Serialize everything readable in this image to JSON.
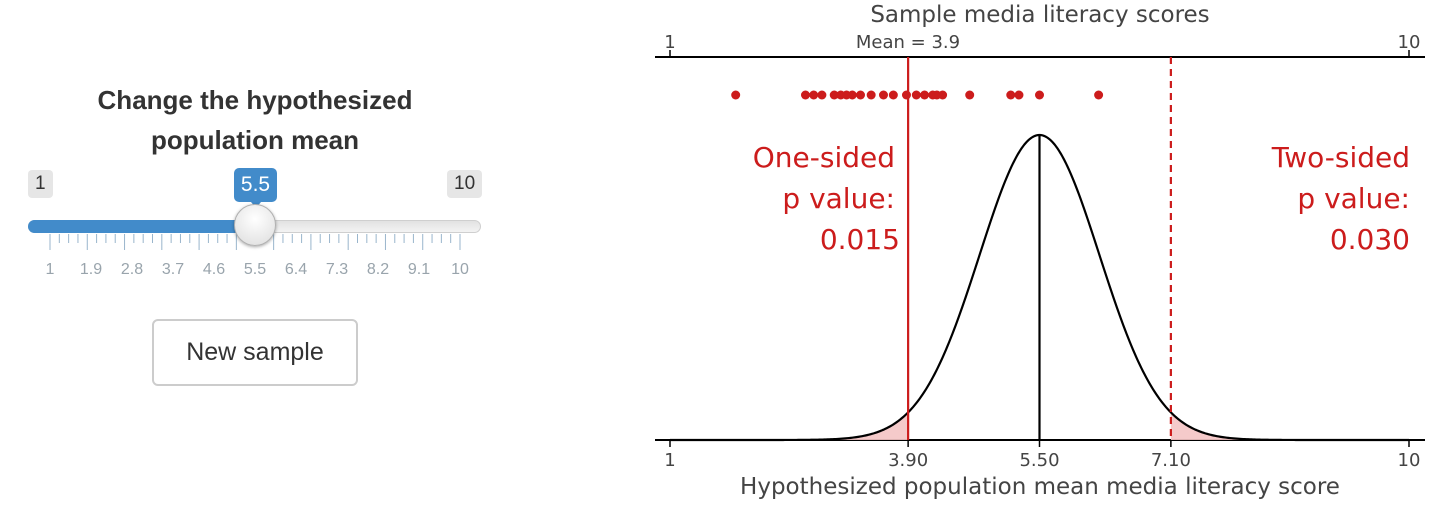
{
  "panel": {
    "title_line1": "Change the hypothesized",
    "title_line2": "population mean",
    "slider": {
      "min_label": "1",
      "max_label": "10",
      "value_label": "5.5",
      "min": 1,
      "max": 10,
      "value": 5.5,
      "tick_labels": [
        "1",
        "1.9",
        "2.8",
        "3.7",
        "4.6",
        "5.5",
        "6.4",
        "7.3",
        "8.2",
        "9.1",
        "10"
      ],
      "fill_color": "#428bca"
    },
    "new_sample_label": "New sample"
  },
  "chart_data": {
    "type": "scatter",
    "title": "Sample media literacy scores",
    "top_axis": {
      "min_label": "1",
      "max_label": "10",
      "mean_label": "Mean = 3.9"
    },
    "xlabel": "Hypothesized population mean media literacy score",
    "xlim": [
      1,
      10
    ],
    "x_tick_labels": [
      "1",
      "3.90",
      "5.50",
      "7.10",
      "10"
    ],
    "x_ticks": [
      1,
      3.9,
      5.5,
      7.1,
      10
    ],
    "sample_scores": [
      1.8,
      2.65,
      2.75,
      2.85,
      3.0,
      3.08,
      3.15,
      3.22,
      3.32,
      3.45,
      3.6,
      3.72,
      3.88,
      4.0,
      4.1,
      4.2,
      4.25,
      4.32,
      4.65,
      5.15,
      5.25,
      5.5,
      6.22
    ],
    "sample_mean": 3.9,
    "hypothesized_mean": 5.5,
    "mirror_value": 7.1,
    "distribution": {
      "mean": 5.5,
      "sd": 0.73
    },
    "one_sided_label": [
      "One-sided",
      "p value:",
      "0.015"
    ],
    "two_sided_label": [
      "Two-sided",
      "p value:",
      "0.030"
    ],
    "colors": {
      "points": "#cc1c1c",
      "observed_line": "#cc1c1c",
      "curve": "#000000",
      "tail_fill": "#f4c4c4"
    }
  }
}
